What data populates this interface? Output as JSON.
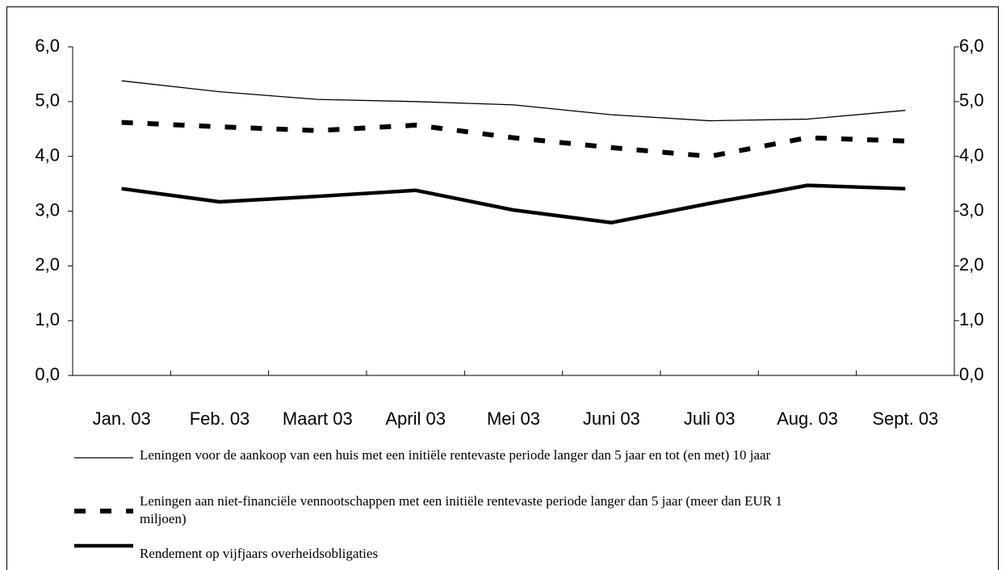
{
  "chart_data": {
    "type": "line",
    "categories": [
      "Jan. 03",
      "Feb. 03",
      "Maart 03",
      "April 03",
      "Mei 03",
      "Juni 03",
      "Juli 03",
      "Aug. 03",
      "Sept. 03"
    ],
    "series": [
      {
        "name": "Leningen voor de aankoop van een huis met een initiële rentevaste periode langer dan 5 jaar en tot (en met) 10 jaar",
        "color": "#000000",
        "line_style": "thin",
        "values": [
          5.38,
          5.18,
          5.04,
          5.0,
          4.94,
          4.76,
          4.65,
          4.68,
          4.84
        ]
      },
      {
        "name": "Leningen aan niet-financiële vennootschappen met een initiële rentevaste periode langer dan 5 jaar (meer dan EUR 1 miljoen)",
        "color": "#000000",
        "line_style": "dashed",
        "values": [
          4.62,
          4.54,
          4.47,
          4.57,
          4.34,
          4.16,
          4.0,
          4.34,
          4.28
        ]
      },
      {
        "name": "Rendement op vijfjaars overheidsobligaties",
        "color": "#000000",
        "line_style": "thick",
        "values": [
          3.41,
          3.17,
          3.27,
          3.38,
          3.02,
          2.79,
          3.14,
          3.47,
          3.41
        ]
      }
    ],
    "ylim": [
      0,
      6
    ],
    "yticks": [
      {
        "value": 0,
        "label": "0,0"
      },
      {
        "value": 1,
        "label": "1,0"
      },
      {
        "value": 2,
        "label": "2,0"
      },
      {
        "value": 3,
        "label": "3,0"
      },
      {
        "value": 4,
        "label": "4,0"
      },
      {
        "value": 5,
        "label": "5,0"
      },
      {
        "value": 6,
        "label": "6,0"
      }
    ],
    "y2lim": [
      0,
      6
    ],
    "y2ticks": [
      {
        "value": 0,
        "label": "0,0"
      },
      {
        "value": 1,
        "label": "1,0"
      },
      {
        "value": 2,
        "label": "2,0"
      },
      {
        "value": 3,
        "label": "3,0"
      },
      {
        "value": 4,
        "label": "4,0"
      },
      {
        "value": 5,
        "label": "5,0"
      },
      {
        "value": 6,
        "label": "6,0"
      }
    ],
    "grid": false,
    "legend": "bottom"
  }
}
